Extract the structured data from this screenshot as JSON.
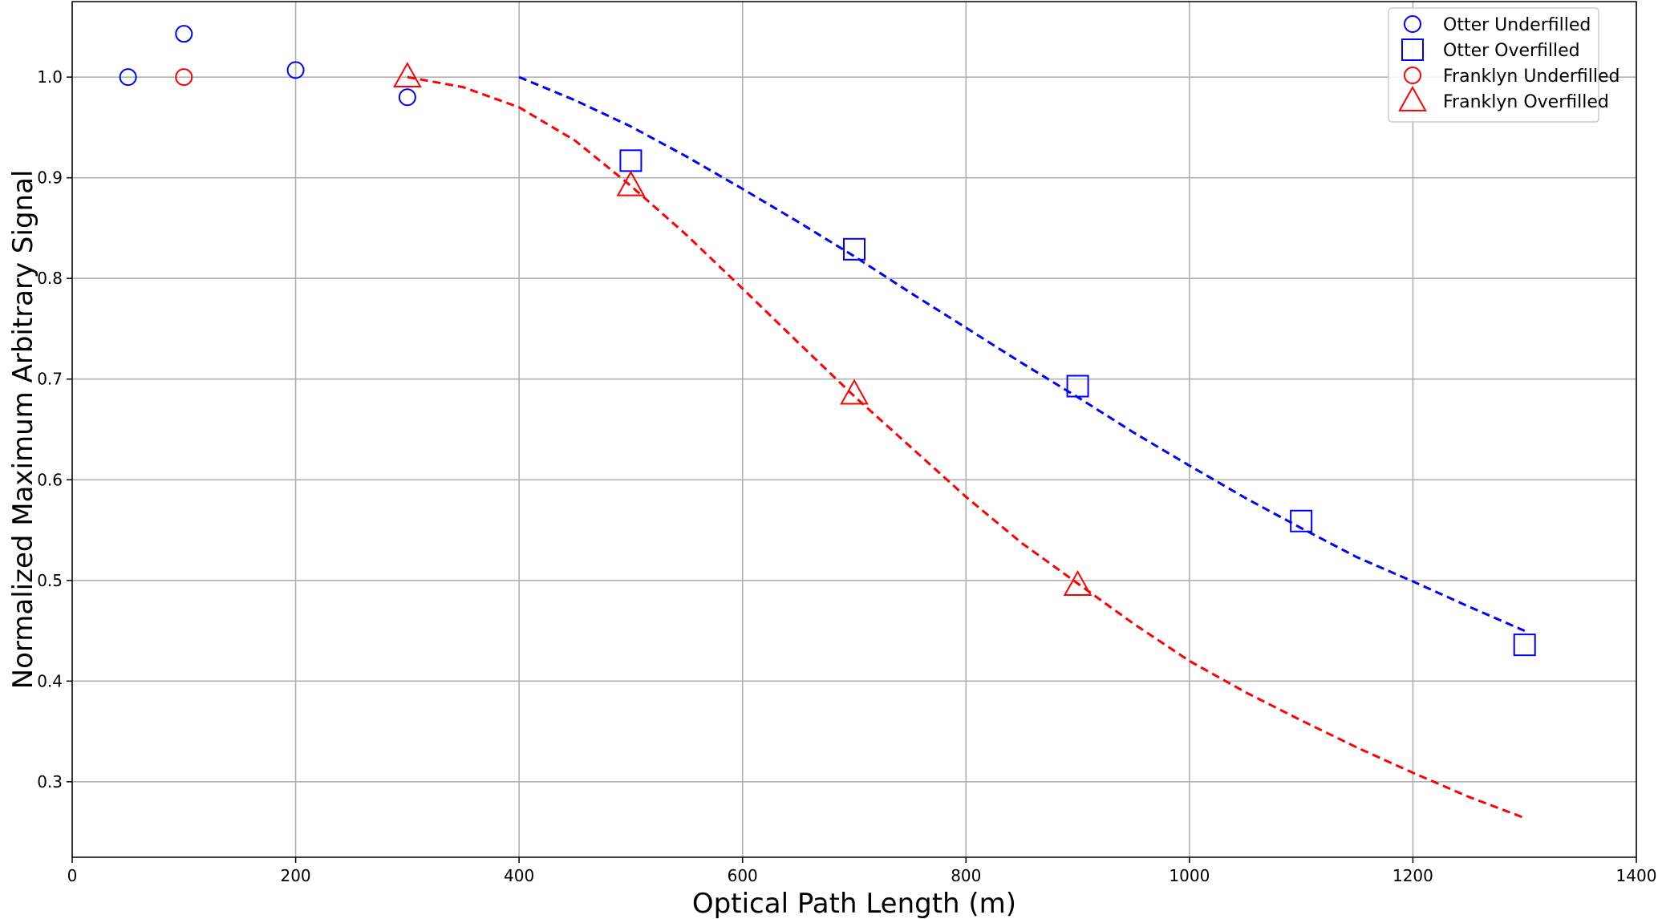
{
  "chart_data": {
    "type": "scatter",
    "title": "",
    "xlabel": "Optical Path Length (m)",
    "ylabel": "Normalized Maximum Arbitrary Signal",
    "xlim": [
      0,
      1400
    ],
    "ylim": [
      0.225,
      1.075
    ],
    "xticks": [
      0,
      200,
      400,
      600,
      800,
      1000,
      1200,
      1400
    ],
    "yticks": [
      0.3,
      0.4,
      0.5,
      0.6,
      0.7,
      0.8,
      0.9,
      1.0
    ],
    "xtick_labels": [
      "0",
      "200",
      "400",
      "600",
      "800",
      "1000",
      "1200",
      "1400"
    ],
    "ytick_labels": [
      "0.3",
      "0.4",
      "0.5",
      "0.6",
      "0.7",
      "0.8",
      "0.9",
      "1.0"
    ],
    "grid": true,
    "legend_position": "top-right",
    "series": [
      {
        "name": "Otter Underfilled",
        "marker": "circle",
        "size": "small",
        "color": "#0000ff",
        "x": [
          50,
          100,
          200,
          300
        ],
        "y": [
          1.0,
          1.043,
          1.007,
          0.98
        ]
      },
      {
        "name": "Otter Overfilled",
        "marker": "square",
        "size": "large",
        "color": "#0000ff",
        "x": [
          500,
          700,
          900,
          1100,
          1300
        ],
        "y": [
          0.917,
          0.829,
          0.693,
          0.559,
          0.436
        ]
      },
      {
        "name": "Franklyn Underfilled",
        "marker": "circle",
        "size": "small",
        "color": "#ff0000",
        "x": [
          100
        ],
        "y": [
          1.0
        ]
      },
      {
        "name": "Franklyn Overfilled",
        "marker": "triangle",
        "size": "large",
        "color": "#ff0000",
        "x": [
          300,
          500,
          700,
          900
        ],
        "y": [
          1.0,
          0.892,
          0.685,
          0.495
        ]
      }
    ],
    "fits": [
      {
        "color": "#0000ff",
        "style": "dashed",
        "x": [
          400,
          450,
          500,
          550,
          600,
          650,
          700,
          750,
          800,
          850,
          900,
          950,
          1000,
          1050,
          1100,
          1150,
          1200,
          1250,
          1300
        ],
        "y": [
          1.0,
          0.977,
          0.951,
          0.921,
          0.889,
          0.856,
          0.822,
          0.786,
          0.751,
          0.716,
          0.682,
          0.647,
          0.614,
          0.582,
          0.552,
          0.523,
          0.499,
          0.474,
          0.45
        ]
      },
      {
        "color": "#ff0000",
        "style": "dashed",
        "x": [
          300,
          350,
          400,
          450,
          500,
          550,
          600,
          650,
          700,
          750,
          800,
          850,
          900,
          950,
          1000,
          1050,
          1100,
          1150,
          1200,
          1250,
          1300
        ],
        "y": [
          1.0,
          0.99,
          0.97,
          0.937,
          0.892,
          0.843,
          0.79,
          0.736,
          0.683,
          0.633,
          0.583,
          0.537,
          0.497,
          0.457,
          0.42,
          0.389,
          0.361,
          0.334,
          0.309,
          0.285,
          0.264
        ]
      }
    ]
  }
}
